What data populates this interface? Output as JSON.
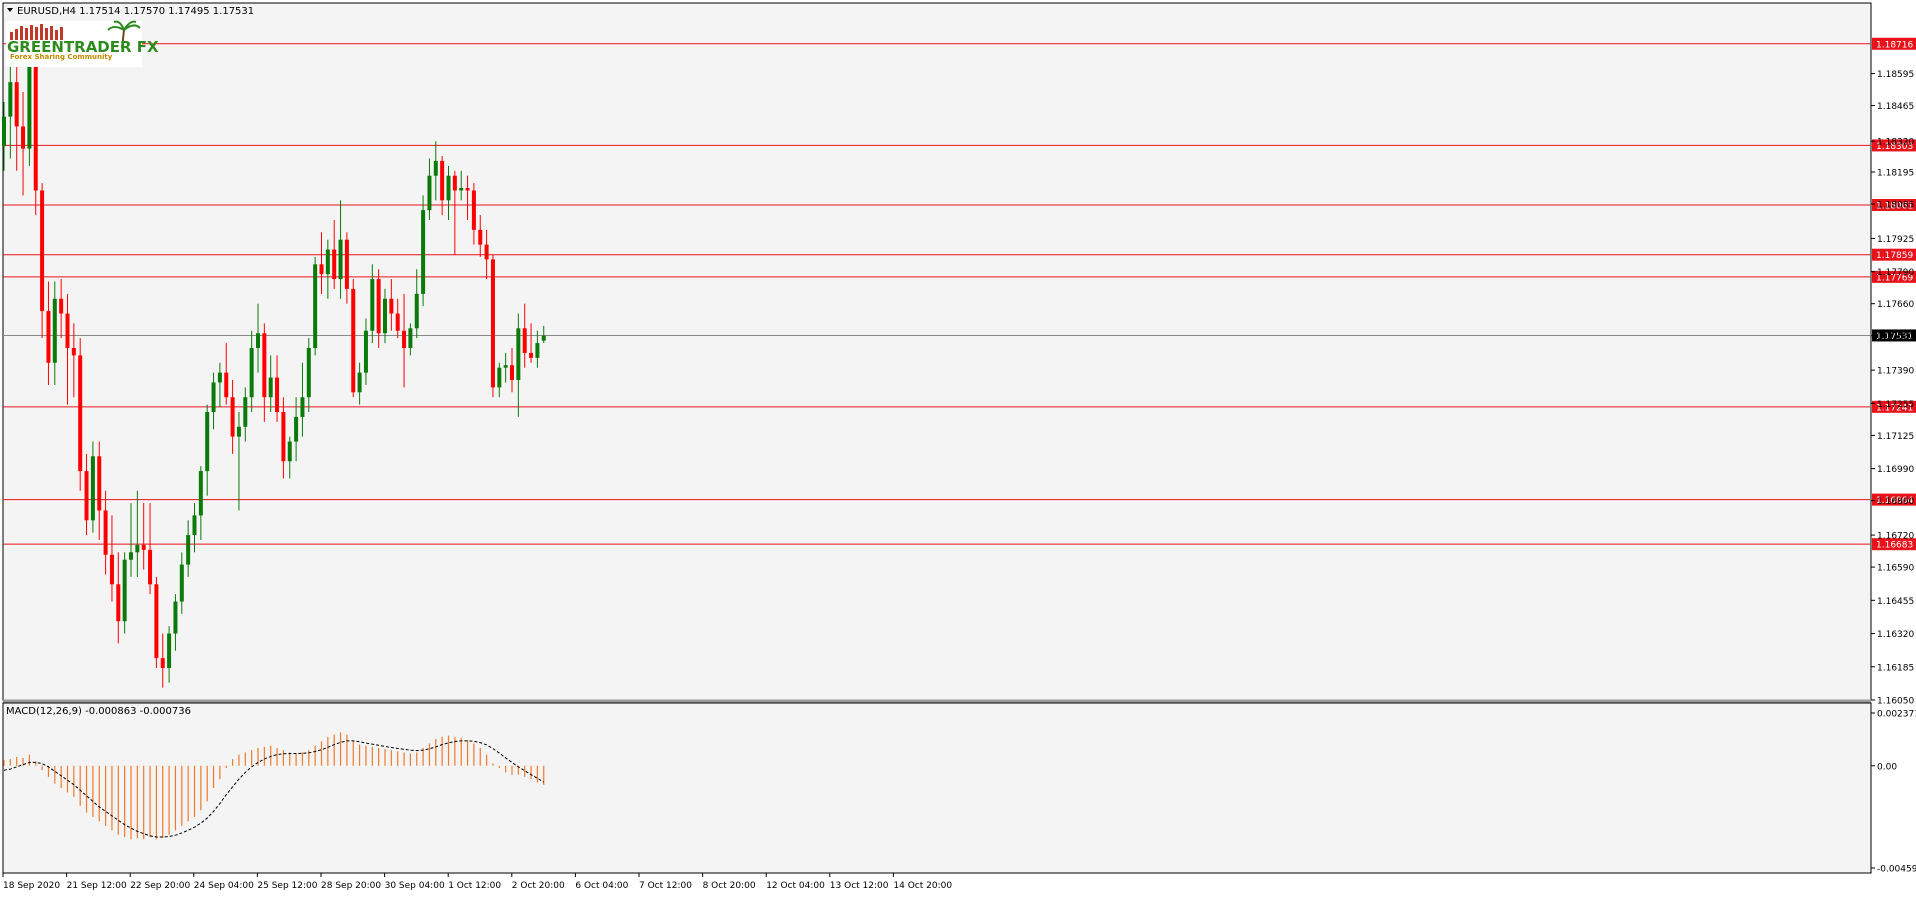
{
  "header": {
    "symbol_line": "EURUSD,H4  1.17514 1.17570 1.17495 1.17531"
  },
  "logo": {
    "title": "GREENTRADER FX",
    "tagline": "Forex Sharing Community"
  },
  "macd": {
    "label": "MACD(12,26,9) -0.000863 -0.000736"
  },
  "colors": {
    "background": "#f4f4f4",
    "bull": "#0a7a0a",
    "bear": "#ff0000",
    "level_line": "#e8121b",
    "histogram": "#f07a2a",
    "signal": "#000000"
  },
  "chart_data": [
    {
      "type": "candlestick",
      "symbol": "EURUSD",
      "timeframe": "H4",
      "ylim": [
        1.1605,
        1.1878
      ],
      "price_ticks": [
        "1.18595",
        "1.18465",
        "1.18320",
        "1.18195",
        "1.18065",
        "1.17925",
        "1.17790",
        "1.17660",
        "1.17530",
        "1.17390",
        "1.17255",
        "1.17125",
        "1.16990",
        "1.16860",
        "1.16720",
        "1.16590",
        "1.16455",
        "1.16320",
        "1.16185",
        "1.16050"
      ],
      "horizontal_levels": [
        "1.18716",
        "1.18303",
        "1.18061",
        "1.17859",
        "1.17769",
        "1.17241",
        "1.16864",
        "1.16683"
      ],
      "current_price": "1.17531",
      "x_labels": [
        "18 Sep 2020",
        "21 Sep 12:00",
        "22 Sep 20:00",
        "24 Sep 04:00",
        "25 Sep 12:00",
        "28 Sep 20:00",
        "30 Sep 04:00",
        "1 Oct 12:00",
        "2 Oct 20:00",
        "6 Oct 04:00",
        "7 Oct 12:00",
        "8 Oct 20:00",
        "12 Oct 04:00",
        "13 Oct 12:00",
        "14 Oct 20:00"
      ],
      "ohlc": [
        [
          1.183,
          1.1848,
          1.182,
          1.1842
        ],
        [
          1.1842,
          1.1872,
          1.1825,
          1.1856
        ],
        [
          1.1856,
          1.1866,
          1.182,
          1.1838
        ],
        [
          1.1838,
          1.1852,
          1.181,
          1.1829
        ],
        [
          1.1829,
          1.187,
          1.1822,
          1.1865
        ],
        [
          1.1865,
          1.1872,
          1.1802,
          1.1812
        ],
        [
          1.1812,
          1.1815,
          1.1752,
          1.1763
        ],
        [
          1.1763,
          1.1775,
          1.1733,
          1.1742
        ],
        [
          1.1742,
          1.1775,
          1.1733,
          1.1768
        ],
        [
          1.1768,
          1.1776,
          1.1752,
          1.1762
        ],
        [
          1.1762,
          1.177,
          1.1725,
          1.1748
        ],
        [
          1.1748,
          1.1758,
          1.1728,
          1.1745
        ],
        [
          1.1745,
          1.1752,
          1.169,
          1.1698
        ],
        [
          1.1698,
          1.1705,
          1.1672,
          1.1678
        ],
        [
          1.1678,
          1.171,
          1.1673,
          1.1704
        ],
        [
          1.1704,
          1.171,
          1.167,
          1.1682
        ],
        [
          1.1682,
          1.169,
          1.1656,
          1.1664
        ],
        [
          1.1664,
          1.168,
          1.1645,
          1.1652
        ],
        [
          1.1652,
          1.1665,
          1.1628,
          1.1637
        ],
        [
          1.1637,
          1.1665,
          1.1632,
          1.1662
        ],
        [
          1.1662,
          1.1685,
          1.1655,
          1.1665
        ],
        [
          1.1665,
          1.169,
          1.1655,
          1.1668
        ],
        [
          1.1668,
          1.1685,
          1.1658,
          1.1666
        ],
        [
          1.1666,
          1.1685,
          1.1648,
          1.1652
        ],
        [
          1.1652,
          1.1655,
          1.1618,
          1.1622
        ],
        [
          1.1622,
          1.1632,
          1.161,
          1.1618
        ],
        [
          1.1618,
          1.1635,
          1.1612,
          1.1632
        ],
        [
          1.1632,
          1.1648,
          1.1625,
          1.1645
        ],
        [
          1.1645,
          1.1665,
          1.164,
          1.166
        ],
        [
          1.166,
          1.1678,
          1.1655,
          1.1672
        ],
        [
          1.1672,
          1.1685,
          1.1665,
          1.168
        ],
        [
          1.168,
          1.17,
          1.167,
          1.1698
        ],
        [
          1.1698,
          1.1725,
          1.1688,
          1.1722
        ],
        [
          1.1722,
          1.1738,
          1.1715,
          1.1734
        ],
        [
          1.1734,
          1.1742,
          1.1724,
          1.1738
        ],
        [
          1.1738,
          1.175,
          1.1725,
          1.1728
        ],
        [
          1.1728,
          1.1735,
          1.1705,
          1.1712
        ],
        [
          1.1712,
          1.1722,
          1.1682,
          1.1716
        ],
        [
          1.1716,
          1.1732,
          1.171,
          1.1728
        ],
        [
          1.1728,
          1.1755,
          1.1722,
          1.1748
        ],
        [
          1.1748,
          1.1766,
          1.1738,
          1.1754
        ],
        [
          1.1754,
          1.1758,
          1.1718,
          1.1728
        ],
        [
          1.1728,
          1.1745,
          1.1722,
          1.1736
        ],
        [
          1.1736,
          1.1745,
          1.1718,
          1.1722
        ],
        [
          1.1722,
          1.1728,
          1.1695,
          1.1702
        ],
        [
          1.1702,
          1.1712,
          1.1695,
          1.171
        ],
        [
          1.171,
          1.1728,
          1.1702,
          1.172
        ],
        [
          1.172,
          1.1742,
          1.1712,
          1.1728
        ],
        [
          1.1728,
          1.1752,
          1.1722,
          1.1748
        ],
        [
          1.1748,
          1.1785,
          1.1745,
          1.1782
        ],
        [
          1.1782,
          1.1795,
          1.177,
          1.1778
        ],
        [
          1.1778,
          1.1792,
          1.1768,
          1.1788
        ],
        [
          1.1788,
          1.18,
          1.1772,
          1.1776
        ],
        [
          1.1776,
          1.1808,
          1.1768,
          1.1792
        ],
        [
          1.1792,
          1.1795,
          1.1766,
          1.1772
        ],
        [
          1.1772,
          1.1776,
          1.1728,
          1.173
        ],
        [
          1.173,
          1.1742,
          1.1725,
          1.1738
        ],
        [
          1.1738,
          1.176,
          1.1733,
          1.1755
        ],
        [
          1.1755,
          1.1782,
          1.175,
          1.1776
        ],
        [
          1.1776,
          1.178,
          1.1748,
          1.1754
        ],
        [
          1.1754,
          1.1772,
          1.175,
          1.1768
        ],
        [
          1.1768,
          1.1776,
          1.1755,
          1.1762
        ],
        [
          1.1762,
          1.1768,
          1.1752,
          1.1755
        ],
        [
          1.1755,
          1.177,
          1.1732,
          1.1748
        ],
        [
          1.1748,
          1.1758,
          1.1745,
          1.1756
        ],
        [
          1.1756,
          1.178,
          1.1752,
          1.177
        ],
        [
          1.177,
          1.181,
          1.1765,
          1.1804
        ],
        [
          1.1804,
          1.1825,
          1.18,
          1.1818
        ],
        [
          1.1818,
          1.1832,
          1.1808,
          1.1824
        ],
        [
          1.1824,
          1.1826,
          1.1802,
          1.1808
        ],
        [
          1.1808,
          1.1822,
          1.18,
          1.1818
        ],
        [
          1.1818,
          1.182,
          1.1786,
          1.1812
        ],
        [
          1.1812,
          1.182,
          1.1808,
          1.1813
        ],
        [
          1.1813,
          1.1818,
          1.18,
          1.1812
        ],
        [
          1.1812,
          1.1815,
          1.179,
          1.1796
        ],
        [
          1.1796,
          1.1802,
          1.1785,
          1.179
        ],
        [
          1.179,
          1.1796,
          1.1776,
          1.1784
        ],
        [
          1.1784,
          1.1786,
          1.1728,
          1.1732
        ],
        [
          1.1732,
          1.1742,
          1.1728,
          1.174
        ],
        [
          1.174,
          1.1746,
          1.1734,
          1.1741
        ],
        [
          1.1741,
          1.1748,
          1.173,
          1.1735
        ],
        [
          1.1735,
          1.1762,
          1.172,
          1.1756
        ],
        [
          1.1756,
          1.1766,
          1.174,
          1.1746
        ],
        [
          1.1746,
          1.1758,
          1.1742,
          1.1744
        ],
        [
          1.1744,
          1.1755,
          1.174,
          1.175
        ],
        [
          1.1751,
          1.1757,
          1.175,
          1.1753
        ]
      ]
    },
    {
      "type": "bar",
      "name": "MACD(12,26,9)",
      "ylim": [
        -0.004595,
        0.002371
      ],
      "y_ticks": [
        "0.002371",
        "0.00",
        "-0.004595"
      ],
      "main_values": [
        0.00025,
        0.0003,
        0.0004,
        0.00035,
        0.0005,
        0.0002,
        -0.0002,
        -0.0005,
        -0.0008,
        -0.001,
        -0.0012,
        -0.0014,
        -0.0018,
        -0.0021,
        -0.0023,
        -0.0025,
        -0.0027,
        -0.0029,
        -0.0031,
        -0.0032,
        -0.0033,
        -0.00325,
        -0.0033,
        -0.0032,
        -0.0033,
        -0.00325,
        -0.0031,
        -0.0029,
        -0.0027,
        -0.0025,
        -0.0023,
        -0.002,
        -0.0016,
        -0.001,
        -0.0006,
        -0.0001,
        0.0003,
        0.0005,
        0.0006,
        0.0007,
        0.0008,
        0.00085,
        0.0009,
        0.0008,
        0.0007,
        0.0006,
        0.00055,
        0.0006,
        0.0007,
        0.0009,
        0.0011,
        0.0013,
        0.0014,
        0.0015,
        0.0014,
        0.0011,
        0.00095,
        0.0009,
        0.00085,
        0.0008,
        0.00075,
        0.0007,
        0.00065,
        0.0006,
        0.00055,
        0.0006,
        0.0008,
        0.001,
        0.0012,
        0.0013,
        0.00135,
        0.0013,
        0.00125,
        0.00115,
        0.001,
        0.0008,
        0.0005,
        0.0001,
        -0.0001,
        -0.0003,
        -0.0004,
        -0.0004,
        -0.0005,
        -0.0006,
        -0.00075,
        -0.00086
      ],
      "signal_values": [
        -0.0002,
        -0.00015,
        -5e-05,
        5e-05,
        0.00015,
        0.00015,
        0.0001,
        -5e-05,
        -0.00025,
        -0.00045,
        -0.00065,
        -0.00085,
        -0.0011,
        -0.00135,
        -0.0016,
        -0.00185,
        -0.00205,
        -0.00225,
        -0.00245,
        -0.00265,
        -0.0028,
        -0.00295,
        -0.00305,
        -0.00315,
        -0.0032,
        -0.0032,
        -0.00318,
        -0.00312,
        -0.00302,
        -0.0029,
        -0.00276,
        -0.00258,
        -0.00235,
        -0.00205,
        -0.0017,
        -0.0013,
        -0.00095,
        -0.0006,
        -0.0003,
        -5e-05,
        0.00015,
        0.0003,
        0.00042,
        0.0005,
        0.00054,
        0.00055,
        0.00055,
        0.00056,
        0.00058,
        0.00064,
        0.00072,
        0.00083,
        0.00095,
        0.00105,
        0.00112,
        0.00112,
        0.00108,
        0.00102,
        0.00097,
        0.00092,
        0.00087,
        0.00082,
        0.00078,
        0.00074,
        0.0007,
        0.00068,
        0.0007,
        0.00076,
        0.00085,
        0.00095,
        0.00103,
        0.00109,
        0.00112,
        0.00112,
        0.0011,
        0.00104,
        0.00094,
        0.00077,
        0.00057,
        0.00035,
        0.00015,
        -5e-05,
        -0.00022,
        -0.0004,
        -0.00056,
        -0.00074
      ]
    }
  ]
}
